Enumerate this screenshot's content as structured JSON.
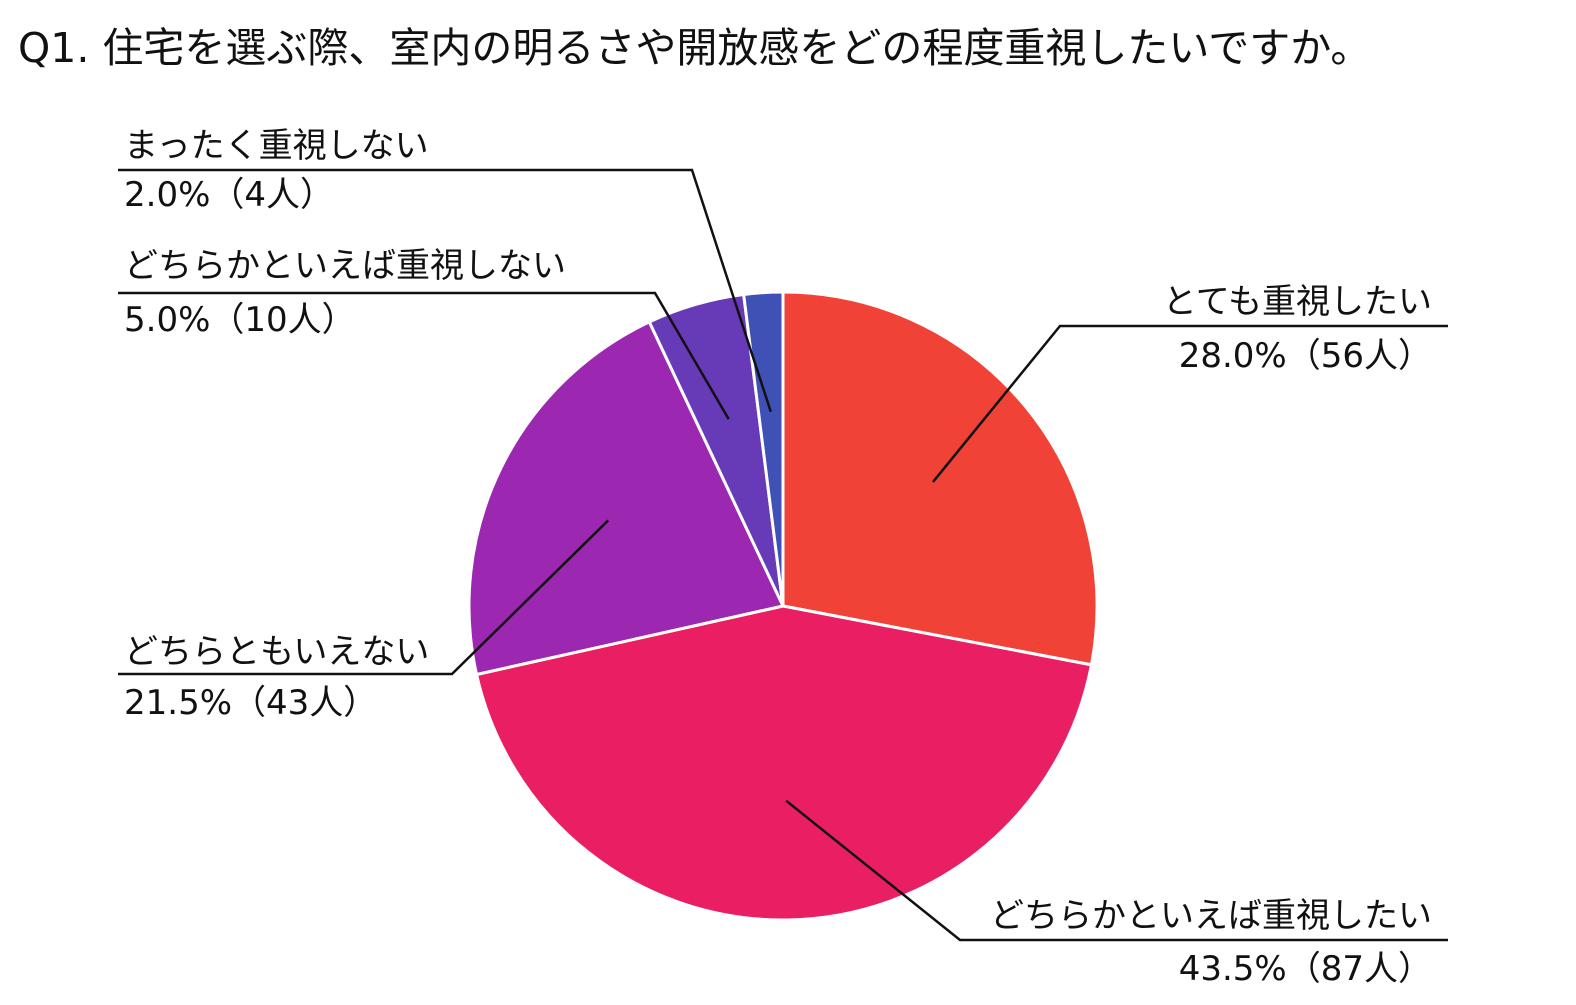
{
  "chart_data": {
    "type": "pie",
    "title": "Q1. 住宅を選ぶ際、室内の明るさや開放感をどの程度重視したいですか。",
    "slices": [
      {
        "label": "とても重視したい",
        "percent": 28.0,
        "count": 56,
        "value_text": "28.0%（56人）",
        "color": "#f04236"
      },
      {
        "label": "どちらかといえば重視したい",
        "percent": 43.5,
        "count": 87,
        "value_text": "43.5%（87人）",
        "color": "#e91e63"
      },
      {
        "label": "どちらともいえない",
        "percent": 21.5,
        "count": 43,
        "value_text": "21.5%（43人）",
        "color": "#9c27b0"
      },
      {
        "label": "どちらかといえば重視しない",
        "percent": 5.0,
        "count": 10,
        "value_text": "5.0%（10人）",
        "color": "#673ab7"
      },
      {
        "label": "まったく重視しない",
        "percent": 2.0,
        "count": 4,
        "value_text": "2.0%（4人）",
        "color": "#3f51b5"
      }
    ],
    "start_angle": "12 o'clock",
    "direction": "clockwise",
    "legend": "none"
  }
}
